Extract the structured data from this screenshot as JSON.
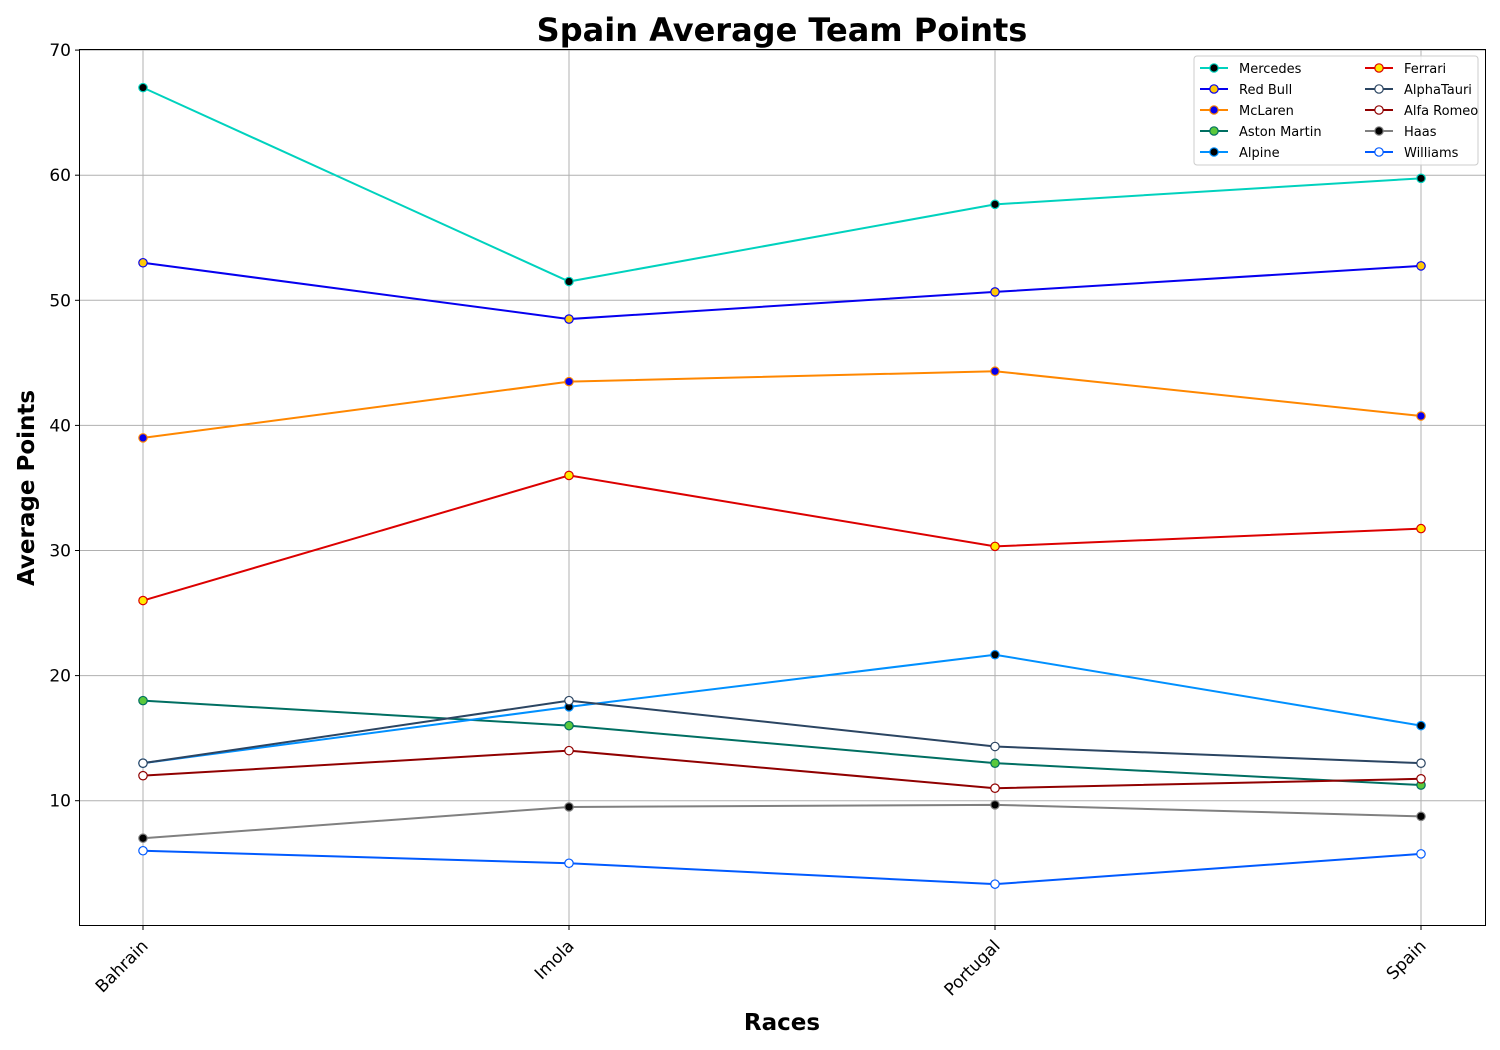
{
  "chart_data": {
    "type": "line",
    "title": "Spain Average Team Points",
    "xlabel": "Races",
    "ylabel": "Average Points",
    "categories": [
      "Bahrain",
      "Imola",
      "Portugal",
      "Spain"
    ],
    "ylim": [
      0,
      70
    ],
    "yticks": [
      10,
      20,
      30,
      40,
      50,
      60,
      70
    ],
    "grid": true,
    "legend_position": "top-right",
    "legend_columns": 2,
    "series": [
      {
        "name": "Mercedes",
        "values": [
          67,
          51.5,
          57.67,
          59.75
        ],
        "color": "#00d2be",
        "marker_fill": "#000000",
        "marker_edge": "#00d2be"
      },
      {
        "name": "Red Bull",
        "values": [
          53,
          48.5,
          50.67,
          52.75
        ],
        "color": "#0600ef",
        "marker_fill": "#ffc906",
        "marker_edge": "#0600ef"
      },
      {
        "name": "McLaren",
        "values": [
          39,
          43.5,
          44.33,
          40.75
        ],
        "color": "#ff8700",
        "marker_fill": "#0600ef",
        "marker_edge": "#ff8700"
      },
      {
        "name": "Aston Martin",
        "values": [
          18,
          16,
          13,
          11.25
        ],
        "color": "#006f62",
        "marker_fill": "#5ac83c",
        "marker_edge": "#006f62"
      },
      {
        "name": "Alpine",
        "values": [
          13,
          17.5,
          21.67,
          16
        ],
        "color": "#0090ff",
        "marker_fill": "#000000",
        "marker_edge": "#0090ff"
      },
      {
        "name": "Ferrari",
        "values": [
          26,
          36,
          30.33,
          31.75
        ],
        "color": "#dc0000",
        "marker_fill": "#ffeb00",
        "marker_edge": "#dc0000"
      },
      {
        "name": "AlphaTauri",
        "values": [
          13,
          18,
          14.33,
          13
        ],
        "color": "#2b4562",
        "marker_fill": "#ffffff",
        "marker_edge": "#2b4562"
      },
      {
        "name": "Alfa Romeo",
        "values": [
          12,
          14,
          11,
          11.75
        ],
        "color": "#900000",
        "marker_fill": "#ffffff",
        "marker_edge": "#900000"
      },
      {
        "name": "Haas",
        "values": [
          7,
          9.5,
          9.67,
          8.75
        ],
        "color": "#808080",
        "marker_fill": "#000000",
        "marker_edge": "#808080"
      },
      {
        "name": "Williams",
        "values": [
          6,
          5,
          3.33,
          5.75
        ],
        "color": "#005aff",
        "marker_fill": "#ffffff",
        "marker_edge": "#005aff"
      }
    ]
  }
}
